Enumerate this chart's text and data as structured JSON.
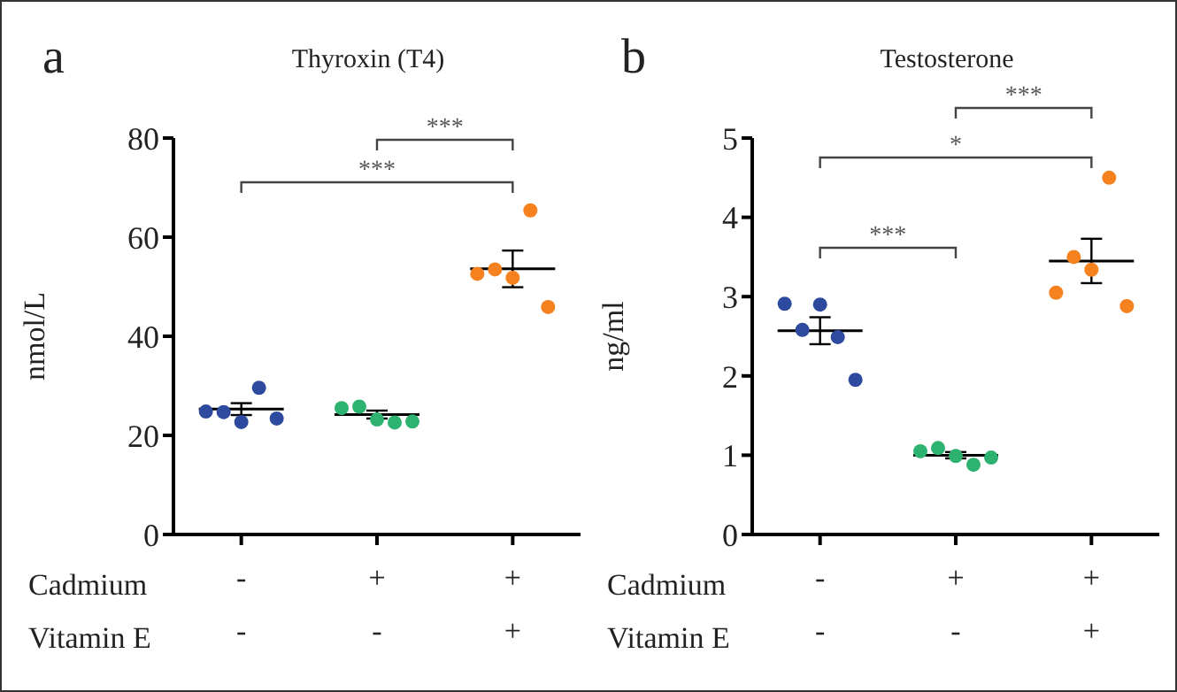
{
  "chart_data": [
    {
      "type": "scatter",
      "title": "Thyroxin (T4)",
      "ylabel": "nmol/L",
      "categories": [
        "-\n-",
        "+\n-",
        "+\n+"
      ],
      "annotations": [
        "a",
        "Cadmium",
        "Vitamin E",
        "***",
        "***"
      ],
      "ylim": [
        0,
        80
      ],
      "yticks": [
        0,
        20,
        40,
        60,
        80
      ],
      "marker": "circle",
      "series": [
        {
          "colors": [
            "#2e4a9e",
            "#2db36f",
            "#f5821f"
          ],
          "values": [
            24.7,
            25.8,
            53.5
          ]
        },
        {
          "colors": [
            "#2e4a9e",
            "#2db36f",
            "#f5821f"
          ],
          "values": [
            22.7,
            23.2,
            51.8
          ]
        },
        {
          "colors": [
            "#2e4a9e",
            "#2db36f",
            "#f5821f"
          ],
          "values": [
            29.6,
            22.6,
            65.4
          ]
        },
        {
          "colors": [
            "#2e4a9e",
            "#2db36f",
            "#f5821f"
          ],
          "values": [
            23.4,
            22.8,
            45.9
          ]
        },
        {
          "colors": [
            "#2e4a9e",
            "#2db36f",
            "#f5821f"
          ],
          "values": [
            24.8,
            25.5,
            52.6
          ]
        },
        {
          "type": "box",
          "color": "#000000",
          "boxes": [
            {
              "low": 24.1,
              "q1": 25.3,
              "median": 25.3,
              "q3": 25.3,
              "high": 26.5
            },
            {
              "low": 23.4,
              "q1": 24.2,
              "median": 24.2,
              "q3": 24.2,
              "high": 25.0
            },
            {
              "low": 49.9,
              "q1": 53.6,
              "median": 53.6,
              "q3": 53.6,
              "high": 57.3
            }
          ]
        }
      ]
    },
    {
      "type": "scatter",
      "title": "Testosterone",
      "ylabel": "ng/ml",
      "categories": [
        "-\n-",
        "+\n-",
        "+\n+"
      ],
      "annotations": [
        "b",
        "Cadmium",
        "Vitamin E",
        "***",
        "*",
        "***"
      ],
      "ylim": [
        0,
        5
      ],
      "yticks": [
        0,
        1,
        2,
        3,
        4,
        5
      ],
      "marker": "circle",
      "series": [
        {
          "colors": [
            "#2e4a9e",
            "#2db36f",
            "#f5821f"
          ],
          "values": [
            2.58,
            1.09,
            3.5
          ]
        },
        {
          "colors": [
            "#2e4a9e",
            "#2db36f",
            "#f5821f"
          ],
          "values": [
            2.9,
            0.99,
            3.34
          ]
        },
        {
          "colors": [
            "#2e4a9e",
            "#2db36f",
            "#f5821f"
          ],
          "values": [
            2.49,
            0.88,
            4.5
          ]
        },
        {
          "colors": [
            "#2e4a9e",
            "#2db36f",
            "#f5821f"
          ],
          "values": [
            1.95,
            0.97,
            2.88
          ]
        },
        {
          "colors": [
            "#2e4a9e",
            "#2db36f",
            "#f5821f"
          ],
          "values": [
            2.91,
            1.05,
            3.05
          ]
        },
        {
          "type": "box",
          "color": "#000000",
          "boxes": [
            {
              "low": 2.4,
              "q1": 2.57,
              "median": 2.57,
              "q3": 2.57,
              "high": 2.74
            },
            {
              "low": 0.96,
              "q1": 1.0,
              "median": 1.0,
              "q3": 1.0,
              "high": 1.04
            },
            {
              "low": 3.17,
              "q1": 3.45,
              "median": 3.45,
              "q3": 3.45,
              "high": 3.73
            }
          ]
        }
      ]
    }
  ]
}
